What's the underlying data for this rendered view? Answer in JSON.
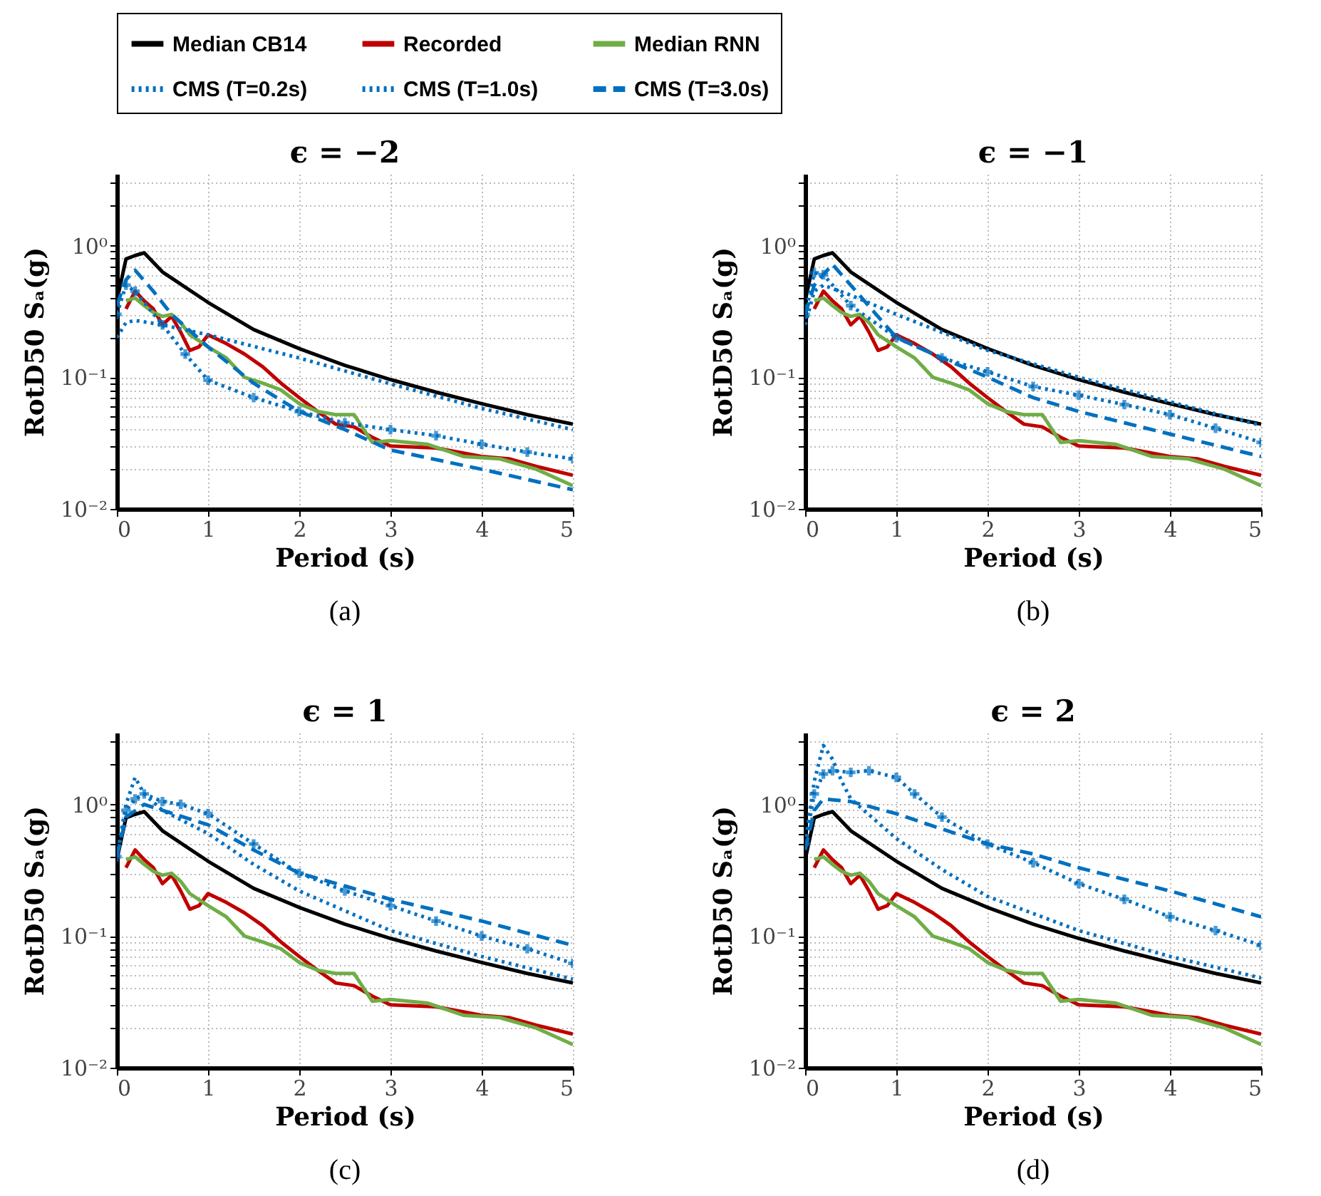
{
  "chart_data": [
    {
      "type": "line",
      "title": "ϵ = −2",
      "xlabel": "Period (s)",
      "ylabel": "RotD50 Sₐ(g)",
      "annotations": [
        "(a)"
      ],
      "log": "y",
      "grid": true,
      "legend": "top",
      "xlim": [
        0,
        5
      ],
      "xticks": [
        0,
        1,
        2,
        3,
        4,
        5
      ],
      "ylim": [
        0.01,
        3.5
      ],
      "yticks": [
        {
          "value": 0.01,
          "label": "10⁻²"
        },
        {
          "value": 0.02,
          "label": null
        },
        {
          "value": 0.03,
          "label": null
        },
        {
          "value": 0.04,
          "label": null
        },
        {
          "value": 0.05,
          "label": null
        },
        {
          "value": 0.06,
          "label": null
        },
        {
          "value": 0.07,
          "label": null
        },
        {
          "value": 0.08,
          "label": null
        },
        {
          "value": 0.09,
          "label": null
        },
        {
          "value": 0.1,
          "label": "10⁻¹"
        },
        {
          "value": 0.2,
          "label": null
        },
        {
          "value": 0.3,
          "label": null
        },
        {
          "value": 0.4,
          "label": null
        },
        {
          "value": 0.5,
          "label": null
        },
        {
          "value": 0.6,
          "label": null
        },
        {
          "value": 0.7,
          "label": null
        },
        {
          "value": 0.8,
          "label": null
        },
        {
          "value": 0.9,
          "label": null
        },
        {
          "value": 1,
          "label": "10⁰"
        },
        {
          "value": 2,
          "label": null
        },
        {
          "value": 3,
          "label": null
        }
      ],
      "series": [
        {
          "name": "Median CB14",
          "color": "#000000",
          "line_style": "solid",
          "x": [
            0,
            0.1,
            0.2,
            0.3,
            0.5,
            1,
            1.5,
            2,
            2.5,
            3,
            3.5,
            4,
            4.5,
            5
          ],
          "values": [
            0.38,
            0.79,
            0.84,
            0.88,
            0.63,
            0.37,
            0.23,
            0.165,
            0.123,
            0.096,
            0.077,
            0.063,
            0.052,
            0.044
          ]
        },
        {
          "name": "Recorded",
          "color": "#c00000",
          "line_style": "solid",
          "x": [
            0.1,
            0.2,
            0.3,
            0.4,
            0.5,
            0.6,
            0.7,
            0.8,
            0.9,
            1,
            1.2,
            1.4,
            1.6,
            1.8,
            2,
            2.2,
            2.4,
            2.6,
            2.8,
            3,
            3.5,
            4,
            4.3,
            4.6,
            5
          ],
          "values": [
            0.33,
            0.45,
            0.38,
            0.33,
            0.25,
            0.29,
            0.22,
            0.16,
            0.17,
            0.21,
            0.18,
            0.15,
            0.12,
            0.09,
            0.07,
            0.055,
            0.044,
            0.042,
            0.035,
            0.03,
            0.029,
            0.025,
            0.024,
            0.021,
            0.018
          ]
        },
        {
          "name": "Median RNN",
          "color": "#70ad47",
          "line_style": "solid",
          "x": [
            0.1,
            0.2,
            0.3,
            0.4,
            0.5,
            0.6,
            0.7,
            0.8,
            1,
            1.2,
            1.4,
            1.6,
            1.8,
            2,
            2.2,
            2.4,
            2.6,
            2.8,
            3,
            3.4,
            3.8,
            4.2,
            4.6,
            5
          ],
          "values": [
            0.38,
            0.4,
            0.35,
            0.31,
            0.29,
            0.3,
            0.26,
            0.21,
            0.17,
            0.14,
            0.1,
            0.09,
            0.08,
            0.063,
            0.055,
            0.052,
            0.052,
            0.032,
            0.033,
            0.031,
            0.025,
            0.024,
            0.02,
            0.015
          ]
        },
        {
          "name": "CMS (T=0.2s)",
          "color": "#0070c0",
          "line_style": "dotted",
          "x": [
            0,
            0.1,
            0.2,
            0.5,
            1,
            2,
            3,
            4,
            5
          ],
          "values": [
            0.2,
            0.26,
            0.27,
            0.25,
            0.21,
            0.14,
            0.089,
            0.058,
            0.04
          ]
        },
        {
          "name": "CMS (T=1.0s)",
          "color": "#0070c0",
          "line_style": "dotted",
          "marker": "cross",
          "x": [
            0,
            0.1,
            0.2,
            0.5,
            0.75,
            1,
            1.5,
            2,
            2.5,
            3,
            3.5,
            4,
            4.5,
            5
          ],
          "values": [
            0.3,
            0.5,
            0.45,
            0.25,
            0.15,
            0.095,
            0.07,
            0.055,
            0.045,
            0.04,
            0.036,
            0.031,
            0.027,
            0.024
          ]
        },
        {
          "name": "CMS (T=3.0s)",
          "color": "#0070c0",
          "line_style": "dashed",
          "x": [
            0,
            0.1,
            0.2,
            0.4,
            0.6,
            1,
            1.5,
            2,
            2.5,
            3,
            4,
            5
          ],
          "values": [
            0.35,
            0.55,
            0.65,
            0.45,
            0.3,
            0.17,
            0.09,
            0.055,
            0.04,
            0.028,
            0.02,
            0.014
          ]
        }
      ]
    },
    {
      "type": "line",
      "title": "ϵ = −1",
      "xlabel": "Period (s)",
      "ylabel": "RotD50 Sₐ(g)",
      "annotations": [
        "(b)"
      ],
      "log": "y",
      "grid": true,
      "xlim": [
        0,
        5
      ],
      "xticks": [
        0,
        1,
        2,
        3,
        4,
        5
      ],
      "ylim": [
        0.01,
        3.5
      ],
      "yticks": [
        {
          "value": 0.01,
          "label": "10⁻²"
        },
        {
          "value": 0.02,
          "label": null
        },
        {
          "value": 0.03,
          "label": null
        },
        {
          "value": 0.04,
          "label": null
        },
        {
          "value": 0.05,
          "label": null
        },
        {
          "value": 0.06,
          "label": null
        },
        {
          "value": 0.07,
          "label": null
        },
        {
          "value": 0.08,
          "label": null
        },
        {
          "value": 0.09,
          "label": null
        },
        {
          "value": 0.1,
          "label": "10⁻¹"
        },
        {
          "value": 0.2,
          "label": null
        },
        {
          "value": 0.3,
          "label": null
        },
        {
          "value": 0.4,
          "label": null
        },
        {
          "value": 0.5,
          "label": null
        },
        {
          "value": 0.6,
          "label": null
        },
        {
          "value": 0.7,
          "label": null
        },
        {
          "value": 0.8,
          "label": null
        },
        {
          "value": 0.9,
          "label": null
        },
        {
          "value": 1,
          "label": "10⁰"
        },
        {
          "value": 2,
          "label": null
        },
        {
          "value": 3,
          "label": null
        }
      ],
      "series": [
        {
          "name": "Median CB14",
          "color": "#000000",
          "line_style": "solid",
          "x": [
            0,
            0.1,
            0.2,
            0.3,
            0.5,
            1,
            1.5,
            2,
            2.5,
            3,
            3.5,
            4,
            4.5,
            5
          ],
          "values": [
            0.38,
            0.79,
            0.84,
            0.88,
            0.63,
            0.37,
            0.23,
            0.165,
            0.123,
            0.096,
            0.077,
            0.063,
            0.052,
            0.044
          ]
        },
        {
          "name": "Recorded",
          "color": "#c00000",
          "line_style": "solid",
          "x": [
            0.1,
            0.2,
            0.3,
            0.4,
            0.5,
            0.6,
            0.7,
            0.8,
            0.9,
            1,
            1.2,
            1.4,
            1.6,
            1.8,
            2,
            2.2,
            2.4,
            2.6,
            2.8,
            3,
            3.5,
            4,
            4.3,
            4.6,
            5
          ],
          "values": [
            0.33,
            0.45,
            0.38,
            0.33,
            0.25,
            0.29,
            0.22,
            0.16,
            0.17,
            0.21,
            0.18,
            0.15,
            0.12,
            0.09,
            0.07,
            0.055,
            0.044,
            0.042,
            0.035,
            0.03,
            0.029,
            0.025,
            0.024,
            0.021,
            0.018
          ]
        },
        {
          "name": "Median RNN",
          "color": "#70ad47",
          "line_style": "solid",
          "x": [
            0.1,
            0.2,
            0.3,
            0.4,
            0.5,
            0.6,
            0.7,
            0.8,
            1,
            1.2,
            1.4,
            1.6,
            1.8,
            2,
            2.2,
            2.4,
            2.6,
            2.8,
            3,
            3.4,
            3.8,
            4.2,
            4.6,
            5
          ],
          "values": [
            0.38,
            0.4,
            0.35,
            0.31,
            0.29,
            0.3,
            0.26,
            0.21,
            0.17,
            0.14,
            0.1,
            0.09,
            0.08,
            0.063,
            0.055,
            0.052,
            0.052,
            0.032,
            0.033,
            0.031,
            0.025,
            0.024,
            0.02,
            0.015
          ]
        },
        {
          "name": "CMS (T=0.2s)",
          "color": "#0070c0",
          "line_style": "dotted",
          "x": [
            0,
            0.1,
            0.2,
            0.5,
            1,
            2,
            3,
            4,
            5
          ],
          "values": [
            0.25,
            0.45,
            0.5,
            0.42,
            0.3,
            0.16,
            0.1,
            0.065,
            0.043
          ]
        },
        {
          "name": "CMS (T=1.0s)",
          "color": "#0070c0",
          "line_style": "dotted",
          "marker": "cross",
          "x": [
            0,
            0.1,
            0.2,
            0.5,
            1,
            1.5,
            2,
            2.5,
            3,
            3.5,
            4,
            4.5,
            5
          ],
          "values": [
            0.3,
            0.62,
            0.6,
            0.35,
            0.2,
            0.14,
            0.11,
            0.085,
            0.073,
            0.062,
            0.052,
            0.041,
            0.032
          ]
        },
        {
          "name": "CMS (T=3.0s)",
          "color": "#0070c0",
          "line_style": "dashed",
          "x": [
            0,
            0.1,
            0.2,
            0.3,
            0.5,
            1,
            1.5,
            2,
            2.5,
            3,
            4,
            5
          ],
          "values": [
            0.3,
            0.5,
            0.6,
            0.72,
            0.5,
            0.2,
            0.14,
            0.1,
            0.07,
            0.055,
            0.037,
            0.025
          ]
        }
      ]
    },
    {
      "type": "line",
      "title": "ϵ = 1",
      "xlabel": "Period (s)",
      "ylabel": "RotD50 Sₐ(g)",
      "annotations": [
        "(c)"
      ],
      "log": "y",
      "grid": true,
      "xlim": [
        0,
        5
      ],
      "xticks": [
        0,
        1,
        2,
        3,
        4,
        5
      ],
      "ylim": [
        0.01,
        3.5
      ],
      "yticks": [
        {
          "value": 0.01,
          "label": "10⁻²"
        },
        {
          "value": 0.02,
          "label": null
        },
        {
          "value": 0.03,
          "label": null
        },
        {
          "value": 0.04,
          "label": null
        },
        {
          "value": 0.05,
          "label": null
        },
        {
          "value": 0.06,
          "label": null
        },
        {
          "value": 0.07,
          "label": null
        },
        {
          "value": 0.08,
          "label": null
        },
        {
          "value": 0.09,
          "label": null
        },
        {
          "value": 0.1,
          "label": "10⁻¹"
        },
        {
          "value": 0.2,
          "label": null
        },
        {
          "value": 0.3,
          "label": null
        },
        {
          "value": 0.4,
          "label": null
        },
        {
          "value": 0.5,
          "label": null
        },
        {
          "value": 0.6,
          "label": null
        },
        {
          "value": 0.7,
          "label": null
        },
        {
          "value": 0.8,
          "label": null
        },
        {
          "value": 0.9,
          "label": null
        },
        {
          "value": 1,
          "label": "10⁰"
        },
        {
          "value": 2,
          "label": null
        },
        {
          "value": 3,
          "label": null
        }
      ],
      "series": [
        {
          "name": "Median CB14",
          "color": "#000000",
          "line_style": "solid",
          "x": [
            0,
            0.1,
            0.2,
            0.3,
            0.5,
            1,
            1.5,
            2,
            2.5,
            3,
            3.5,
            4,
            4.5,
            5
          ],
          "values": [
            0.38,
            0.79,
            0.84,
            0.88,
            0.63,
            0.37,
            0.23,
            0.165,
            0.123,
            0.096,
            0.077,
            0.063,
            0.052,
            0.044
          ]
        },
        {
          "name": "Recorded",
          "color": "#c00000",
          "line_style": "solid",
          "x": [
            0.1,
            0.2,
            0.3,
            0.4,
            0.5,
            0.6,
            0.7,
            0.8,
            0.9,
            1,
            1.2,
            1.4,
            1.6,
            1.8,
            2,
            2.2,
            2.4,
            2.6,
            2.8,
            3,
            3.5,
            4,
            4.3,
            4.6,
            5
          ],
          "values": [
            0.33,
            0.45,
            0.38,
            0.33,
            0.25,
            0.29,
            0.22,
            0.16,
            0.17,
            0.21,
            0.18,
            0.15,
            0.12,
            0.09,
            0.07,
            0.055,
            0.044,
            0.042,
            0.035,
            0.03,
            0.029,
            0.025,
            0.024,
            0.021,
            0.018
          ]
        },
        {
          "name": "Median RNN",
          "color": "#70ad47",
          "line_style": "solid",
          "x": [
            0.1,
            0.2,
            0.3,
            0.4,
            0.5,
            0.6,
            0.7,
            0.8,
            1,
            1.2,
            1.4,
            1.6,
            1.8,
            2,
            2.2,
            2.4,
            2.6,
            2.8,
            3,
            3.4,
            3.8,
            4.2,
            4.6,
            5
          ],
          "values": [
            0.38,
            0.4,
            0.35,
            0.31,
            0.29,
            0.3,
            0.26,
            0.21,
            0.17,
            0.14,
            0.1,
            0.09,
            0.08,
            0.063,
            0.055,
            0.052,
            0.052,
            0.032,
            0.033,
            0.031,
            0.025,
            0.024,
            0.02,
            0.015
          ]
        },
        {
          "name": "CMS (T=0.2s)",
          "color": "#0070c0",
          "line_style": "dotted",
          "x": [
            0,
            0.1,
            0.2,
            0.3,
            0.5,
            1,
            1.5,
            2,
            3,
            4,
            5
          ],
          "values": [
            0.4,
            1,
            1.6,
            1.2,
            0.9,
            0.6,
            0.35,
            0.22,
            0.11,
            0.07,
            0.047
          ]
        },
        {
          "name": "CMS (T=1.0s)",
          "color": "#0070c0",
          "line_style": "dotted",
          "marker": "cross",
          "x": [
            0,
            0.1,
            0.2,
            0.3,
            0.5,
            0.7,
            1,
            1.5,
            2,
            2.5,
            3,
            3.5,
            4,
            4.5,
            5
          ],
          "values": [
            0.4,
            0.9,
            1.1,
            1.2,
            1.05,
            1,
            0.85,
            0.5,
            0.3,
            0.22,
            0.17,
            0.13,
            0.1,
            0.08,
            0.062
          ]
        },
        {
          "name": "CMS (T=3.0s)",
          "color": "#0070c0",
          "line_style": "dashed",
          "x": [
            0,
            0.1,
            0.3,
            0.5,
            1,
            1.5,
            2,
            2.5,
            3,
            4,
            5
          ],
          "values": [
            0.4,
            0.8,
            1,
            0.9,
            0.7,
            0.45,
            0.3,
            0.24,
            0.19,
            0.13,
            0.085
          ]
        }
      ]
    },
    {
      "type": "line",
      "title": "ϵ = 2",
      "xlabel": "Period (s)",
      "ylabel": "RotD50 Sₐ(g)",
      "annotations": [
        "(d)"
      ],
      "log": "y",
      "grid": true,
      "xlim": [
        0,
        5
      ],
      "xticks": [
        0,
        1,
        2,
        3,
        4,
        5
      ],
      "ylim": [
        0.01,
        3.5
      ],
      "yticks": [
        {
          "value": 0.01,
          "label": "10⁻²"
        },
        {
          "value": 0.02,
          "label": null
        },
        {
          "value": 0.03,
          "label": null
        },
        {
          "value": 0.04,
          "label": null
        },
        {
          "value": 0.05,
          "label": null
        },
        {
          "value": 0.06,
          "label": null
        },
        {
          "value": 0.07,
          "label": null
        },
        {
          "value": 0.08,
          "label": null
        },
        {
          "value": 0.09,
          "label": null
        },
        {
          "value": 0.1,
          "label": "10⁻¹"
        },
        {
          "value": 0.2,
          "label": null
        },
        {
          "value": 0.3,
          "label": null
        },
        {
          "value": 0.4,
          "label": null
        },
        {
          "value": 0.5,
          "label": null
        },
        {
          "value": 0.6,
          "label": null
        },
        {
          "value": 0.7,
          "label": null
        },
        {
          "value": 0.8,
          "label": null
        },
        {
          "value": 0.9,
          "label": null
        },
        {
          "value": 1,
          "label": "10⁰"
        },
        {
          "value": 2,
          "label": null
        },
        {
          "value": 3,
          "label": null
        }
      ],
      "series": [
        {
          "name": "Median CB14",
          "color": "#000000",
          "line_style": "solid",
          "x": [
            0,
            0.1,
            0.2,
            0.3,
            0.5,
            1,
            1.5,
            2,
            2.5,
            3,
            3.5,
            4,
            4.5,
            5
          ],
          "values": [
            0.38,
            0.79,
            0.84,
            0.88,
            0.63,
            0.37,
            0.23,
            0.165,
            0.123,
            0.096,
            0.077,
            0.063,
            0.052,
            0.044
          ]
        },
        {
          "name": "Recorded",
          "color": "#c00000",
          "line_style": "solid",
          "x": [
            0.1,
            0.2,
            0.3,
            0.4,
            0.5,
            0.6,
            0.7,
            0.8,
            0.9,
            1,
            1.2,
            1.4,
            1.6,
            1.8,
            2,
            2.2,
            2.4,
            2.6,
            2.8,
            3,
            3.5,
            4,
            4.3,
            4.6,
            5
          ],
          "values": [
            0.33,
            0.45,
            0.38,
            0.33,
            0.25,
            0.29,
            0.22,
            0.16,
            0.17,
            0.21,
            0.18,
            0.15,
            0.12,
            0.09,
            0.07,
            0.055,
            0.044,
            0.042,
            0.035,
            0.03,
            0.029,
            0.025,
            0.024,
            0.021,
            0.018
          ]
        },
        {
          "name": "Median RNN",
          "color": "#70ad47",
          "line_style": "solid",
          "x": [
            0.1,
            0.2,
            0.3,
            0.4,
            0.5,
            0.6,
            0.7,
            0.8,
            1,
            1.2,
            1.4,
            1.6,
            1.8,
            2,
            2.2,
            2.4,
            2.6,
            2.8,
            3,
            3.4,
            3.8,
            4.2,
            4.6,
            5
          ],
          "values": [
            0.38,
            0.4,
            0.35,
            0.31,
            0.29,
            0.3,
            0.26,
            0.21,
            0.17,
            0.14,
            0.1,
            0.09,
            0.08,
            0.063,
            0.055,
            0.052,
            0.052,
            0.032,
            0.033,
            0.031,
            0.025,
            0.024,
            0.02,
            0.015
          ]
        },
        {
          "name": "CMS (T=0.2s)",
          "color": "#0070c0",
          "line_style": "dotted",
          "x": [
            0,
            0.1,
            0.2,
            0.3,
            0.4,
            0.5,
            1,
            1.5,
            2,
            3,
            4,
            5
          ],
          "values": [
            0.5,
            1.5,
            2.8,
            2.2,
            1.5,
            1.1,
            0.55,
            0.32,
            0.2,
            0.11,
            0.07,
            0.048
          ]
        },
        {
          "name": "CMS (T=1.0s)",
          "color": "#0070c0",
          "line_style": "dotted",
          "marker": "cross",
          "x": [
            0,
            0.1,
            0.2,
            0.3,
            0.5,
            0.7,
            1,
            1.2,
            1.5,
            2,
            2.5,
            3,
            3.5,
            4,
            4.5,
            5
          ],
          "values": [
            0.5,
            1.2,
            1.7,
            1.8,
            1.75,
            1.8,
            1.6,
            1.2,
            0.8,
            0.5,
            0.36,
            0.25,
            0.19,
            0.14,
            0.11,
            0.085
          ]
        },
        {
          "name": "CMS (T=3.0s)",
          "color": "#0070c0",
          "line_style": "dashed",
          "x": [
            0,
            0.1,
            0.2,
            0.5,
            1,
            1.5,
            2,
            2.5,
            3,
            4,
            5
          ],
          "values": [
            0.45,
            0.9,
            1.1,
            1.05,
            0.85,
            0.65,
            0.5,
            0.42,
            0.33,
            0.22,
            0.14
          ]
        }
      ]
    }
  ]
}
